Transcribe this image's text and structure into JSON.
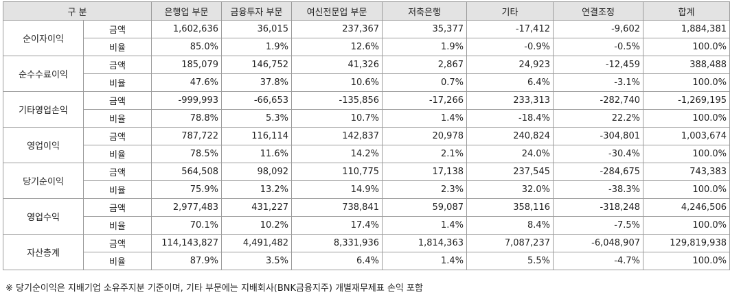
{
  "table": {
    "header": {
      "category": "구 분",
      "columns": [
        "은행업 부문",
        "금융투자 부문",
        "여신전문업 부문",
        "저축은행",
        "기타",
        "연결조정",
        "합계"
      ]
    },
    "rows": [
      {
        "label": "순이자이익",
        "amount_label": "금액",
        "amount": [
          "1,602,636",
          "36,015",
          "237,367",
          "35,377",
          "-17,412",
          "-9,602",
          "1,884,381"
        ],
        "ratio_label": "비율",
        "ratio": [
          "85.0%",
          "1.9%",
          "12.6%",
          "1.9%",
          "-0.9%",
          "-0.5%",
          "100.0%"
        ]
      },
      {
        "label": "순수수료이익",
        "amount_label": "금액",
        "amount": [
          "185,079",
          "146,752",
          "41,326",
          "2,867",
          "24,923",
          "-12,459",
          "388,488"
        ],
        "ratio_label": "비율",
        "ratio": [
          "47.6%",
          "37.8%",
          "10.6%",
          "0.7%",
          "6.4%",
          "-3.1%",
          "100.0%"
        ]
      },
      {
        "label": "기타영업손익",
        "amount_label": "금액",
        "amount": [
          "-999,993",
          "-66,653",
          "-135,856",
          "-17,266",
          "233,313",
          "-282,740",
          "-1,269,195"
        ],
        "ratio_label": "비율",
        "ratio": [
          "78.8%",
          "5.3%",
          "10.7%",
          "1.4%",
          "-18.4%",
          "22.2%",
          "100.0%"
        ]
      },
      {
        "label": "영업이익",
        "amount_label": "금액",
        "amount": [
          "787,722",
          "116,114",
          "142,837",
          "20,978",
          "240,824",
          "-304,801",
          "1,003,674"
        ],
        "ratio_label": "비율",
        "ratio": [
          "78.5%",
          "11.6%",
          "14.2%",
          "2.1%",
          "24.0%",
          "-30.4%",
          "100.0%"
        ]
      },
      {
        "label": "당기순이익",
        "amount_label": "금액",
        "amount": [
          "564,508",
          "98,092",
          "110,775",
          "17,138",
          "237,545",
          "-284,675",
          "743,383"
        ],
        "ratio_label": "비율",
        "ratio": [
          "75.9%",
          "13.2%",
          "14.9%",
          "2.3%",
          "32.0%",
          "-38.3%",
          "100.0%"
        ]
      },
      {
        "label": "영업수익",
        "amount_label": "금액",
        "amount": [
          "2,977,483",
          "431,227",
          "738,841",
          "59,087",
          "358,116",
          "-318,248",
          "4,246,506"
        ],
        "ratio_label": "비율",
        "ratio": [
          "70.1%",
          "10.2%",
          "17.4%",
          "1.4%",
          "8.4%",
          "-7.5%",
          "100.0%"
        ]
      },
      {
        "label": "자산총계",
        "amount_label": "금액",
        "amount": [
          "114,143,827",
          "4,491,482",
          "8,331,936",
          "1,814,363",
          "7,087,237",
          "-6,048,907",
          "129,819,938"
        ],
        "ratio_label": "비율",
        "ratio": [
          "87.9%",
          "3.5%",
          "6.4%",
          "1.4%",
          "5.5%",
          "-4.7%",
          "100.0%"
        ]
      }
    ]
  },
  "note": "※ 당기순이익은 지배기업 소유주지분 기준이며, 기타 부문에는 지배회사(BNK금융지주) 개별재무제표 손익 포함",
  "colors": {
    "header_bg": "#e3e3e3",
    "border": "#9a9a9a"
  }
}
